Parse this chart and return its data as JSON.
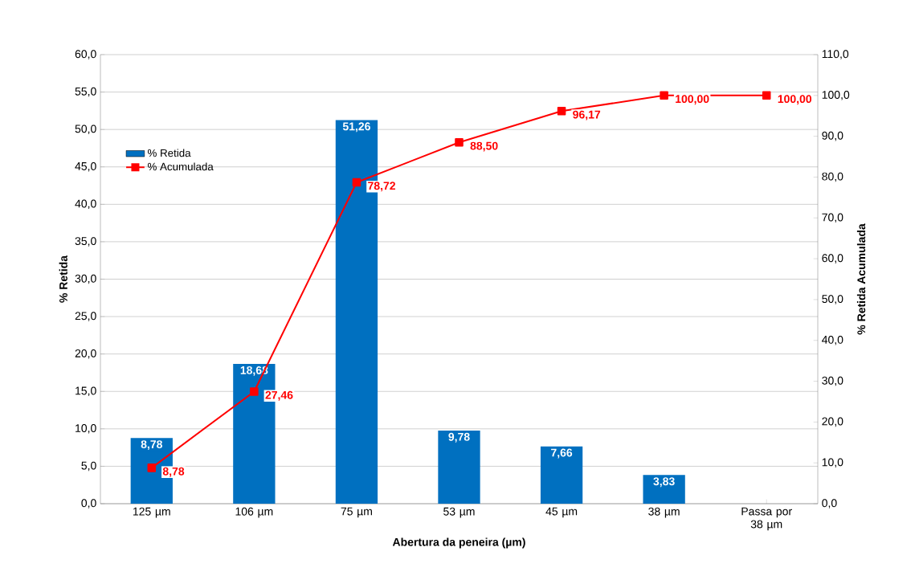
{
  "chart_data": {
    "type": "bar",
    "xlabel": "Abertura da peneira (µm)",
    "ylabel": "% Retida",
    "y2label": "% Retida Acumulada",
    "categories": [
      "125 µm",
      "106 µm",
      "75 µm",
      "53 µm",
      "45 µm",
      "38 µm",
      "Passa por 38 µm"
    ],
    "series": [
      {
        "name": "% Retida",
        "color": "#0070c0",
        "values": [
          8.78,
          18.68,
          51.26,
          9.78,
          7.66,
          3.83,
          null
        ],
        "value_labels": [
          "8,78",
          "18,68",
          "51,26",
          "9,78",
          "7,66",
          "3,83",
          null
        ]
      },
      {
        "name": "% Acumulada",
        "type": "line",
        "axis": "y2",
        "color": "#ff0000",
        "marker": "square",
        "values": [
          8.78,
          27.46,
          78.72,
          88.5,
          96.17,
          100.0,
          100.0
        ],
        "value_labels": [
          "8,78",
          "27,46",
          "78,72",
          "88,50",
          "96,17",
          "100,00",
          "100,00"
        ]
      }
    ],
    "ylim": [
      0,
      60
    ],
    "yticks": [
      {
        "value": 0,
        "label": "0,0"
      },
      {
        "value": 5,
        "label": "5,0"
      },
      {
        "value": 10,
        "label": "10,0"
      },
      {
        "value": 15,
        "label": "15,0"
      },
      {
        "value": 20,
        "label": "20,0"
      },
      {
        "value": 25,
        "label": "25,0"
      },
      {
        "value": 30,
        "label": "30,0"
      },
      {
        "value": 35,
        "label": "35,0"
      },
      {
        "value": 40,
        "label": "40,0"
      },
      {
        "value": 45,
        "label": "45,0"
      },
      {
        "value": 50,
        "label": "50,0"
      },
      {
        "value": 55,
        "label": "55,0"
      },
      {
        "value": 60,
        "label": "60,0"
      }
    ],
    "y2lim": [
      0,
      110
    ],
    "y2ticks": [
      {
        "value": 0,
        "label": "0,0"
      },
      {
        "value": 10,
        "label": "10,0"
      },
      {
        "value": 20,
        "label": "20,0"
      },
      {
        "value": 30,
        "label": "30,0"
      },
      {
        "value": 40,
        "label": "40,0"
      },
      {
        "value": 50,
        "label": "50,0"
      },
      {
        "value": 60,
        "label": "60,0"
      },
      {
        "value": 70,
        "label": "70,0"
      },
      {
        "value": 80,
        "label": "80,0"
      },
      {
        "value": 90,
        "label": "90,0"
      },
      {
        "value": 100,
        "label": "100,0"
      },
      {
        "value": 110,
        "label": "110,0"
      }
    ],
    "grid": "y",
    "legend": "top left"
  }
}
